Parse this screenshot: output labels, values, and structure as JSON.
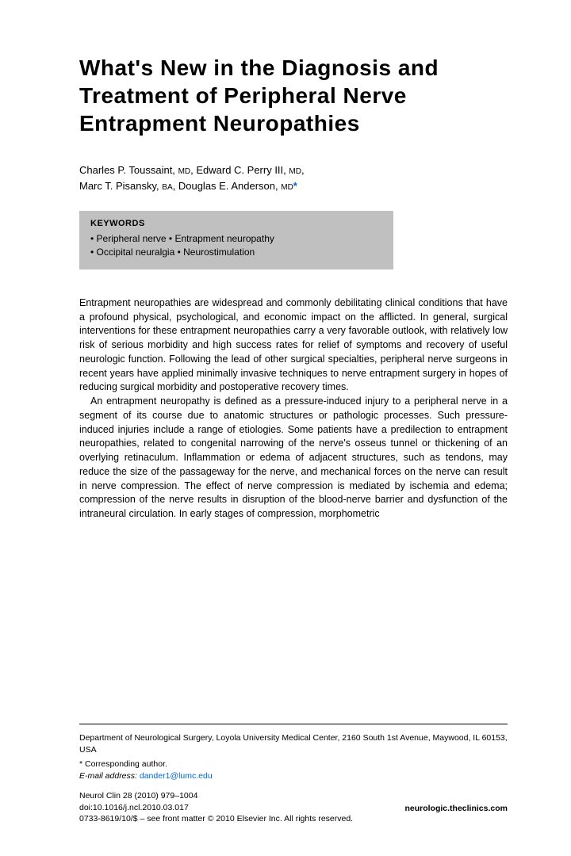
{
  "title": "What's New in the Diagnosis and Treatment of Peripheral Nerve Entrapment Neuropathies",
  "authors": {
    "line1_name1": "Charles P. Toussaint,",
    "line1_cred1": "MD",
    "line1_name2": ", Edward C. Perry III,",
    "line1_cred2": "MD",
    "line2_name1": "Marc T. Pisansky,",
    "line2_cred1": "BA",
    "line2_name2": ", Douglas E. Anderson,",
    "line2_cred2": "MD",
    "star": "*"
  },
  "keywords": {
    "heading": "KEYWORDS",
    "line1": "• Peripheral nerve • Entrapment neuropathy",
    "line2": "• Occipital neuralgia • Neurostimulation"
  },
  "body": {
    "p1": "Entrapment neuropathies are widespread and commonly debilitating clinical conditions that have a profound physical, psychological, and economic impact on the afflicted. In general, surgical interventions for these entrapment neuropathies carry a very favorable outlook, with relatively low risk of serious morbidity and high success rates for relief of symptoms and recovery of useful neurologic function. Following the lead of other surgical specialties, peripheral nerve surgeons in recent years have applied minimally invasive techniques to nerve entrapment surgery in hopes of reducing surgical morbidity and postoperative recovery times.",
    "p2": "An entrapment neuropathy is defined as a pressure-induced injury to a peripheral nerve in a segment of its course due to anatomic structures or pathologic processes. Such pressure-induced injuries include a range of etiologies. Some patients have a predilection to entrapment neuropathies, related to congenital narrowing of the nerve's osseus tunnel or thickening of an overlying retinaculum. Inflammation or edema of adjacent structures, such as tendons, may reduce the size of the passageway for the nerve, and mechanical forces on the nerve can result in nerve compression. The effect of nerve compression is mediated by ischemia and edema; compression of the nerve results in disruption of the blood-nerve barrier and dysfunction of the intraneural circulation. In early stages of compression, morphometric"
  },
  "footer": {
    "affiliation": "Department of Neurological Surgery, Loyola University Medical Center, 2160 South 1st Avenue, Maywood, IL 60153, USA",
    "corresponding": "* Corresponding author.",
    "email_label": "E-mail address:",
    "email": "dander1@lumc.edu",
    "journal": "Neurol Clin 28 (2010) 979–1004",
    "doi": "doi:10.1016/j.ncl.2010.03.017",
    "copyright": "0733-8619/10/$ – see front matter © 2010 Elsevier Inc. All rights reserved.",
    "site": "neurologic.theclinics.com"
  },
  "colors": {
    "link": "#0066cc",
    "keywords_bg": "#c0c0c0",
    "text": "#000000",
    "background": "#ffffff"
  }
}
